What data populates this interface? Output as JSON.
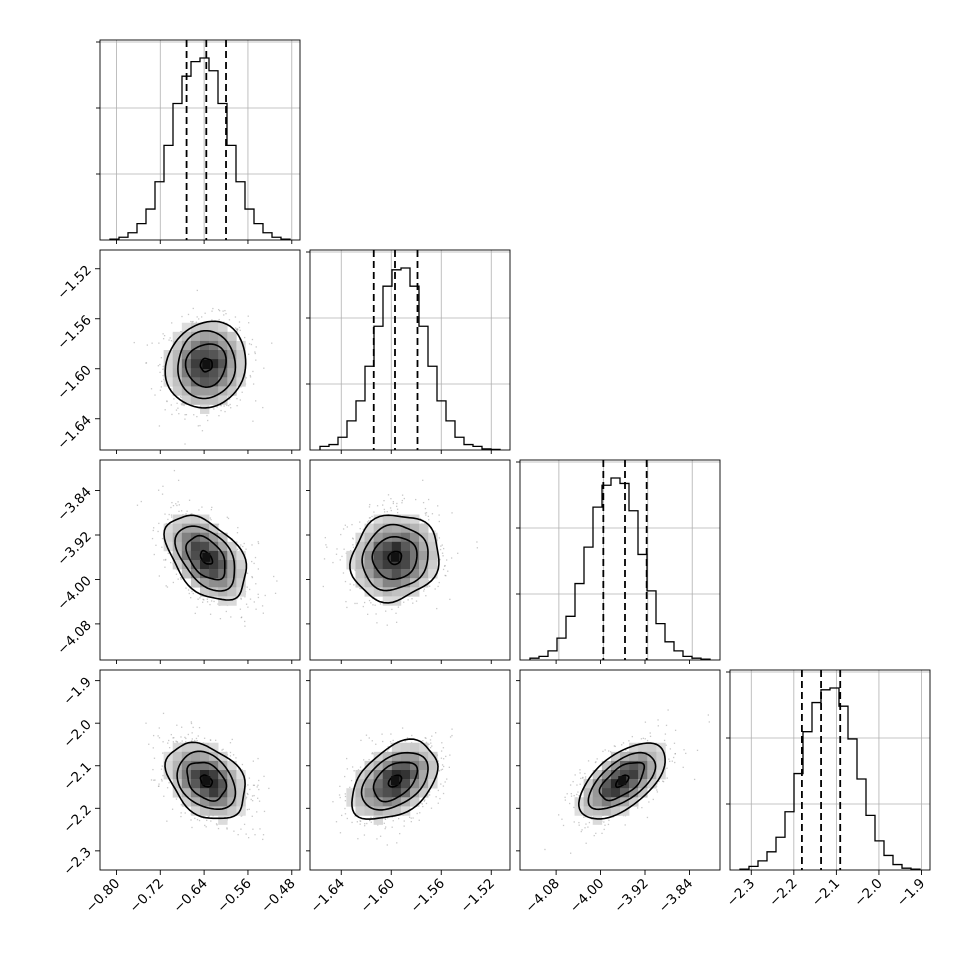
{
  "chart_data": {
    "type": "corner",
    "parameters": [
      {
        "ticks": [
          -0.8,
          -0.72,
          -0.64,
          -0.56,
          -0.48
        ],
        "tick_labels": [
          "−0.80",
          "−0.72",
          "−0.64",
          "−0.56",
          "−0.48"
        ],
        "range": [
          -0.83,
          -0.465
        ],
        "quantiles": [
          -0.672,
          -0.636,
          -0.6
        ],
        "hist_bins": [
          0.005,
          0.015,
          0.04,
          0.09,
          0.17,
          0.32,
          0.52,
          0.75,
          0.9,
          0.98,
          1.0,
          0.93,
          0.75,
          0.52,
          0.32,
          0.17,
          0.09,
          0.04,
          0.015,
          0.005
        ]
      },
      {
        "ticks": [
          -1.64,
          -1.6,
          -1.56,
          -1.52
        ],
        "tick_labels": [
          "−1.64",
          "−1.60",
          "−1.56",
          "−1.52"
        ],
        "range": [
          -1.665,
          -1.505
        ],
        "quantiles": [
          -1.614,
          -1.597,
          -1.579
        ],
        "hist_bins": [
          0.02,
          0.03,
          0.07,
          0.16,
          0.27,
          0.46,
          0.68,
          0.9,
          0.99,
          1.0,
          0.9,
          0.68,
          0.46,
          0.27,
          0.16,
          0.07,
          0.03,
          0.02,
          0.006,
          0.003
        ]
      },
      {
        "ticks": [
          -4.08,
          -4.0,
          -3.92,
          -3.84
        ],
        "tick_labels": [
          "−4.08",
          "−4.00",
          "−3.92",
          "−3.84"
        ],
        "range": [
          -4.15,
          -3.79
        ],
        "quantiles": [
          -4.0,
          -3.961,
          -3.922
        ],
        "hist_bins": [
          0.01,
          0.02,
          0.05,
          0.12,
          0.24,
          0.42,
          0.62,
          0.84,
          0.96,
          1.0,
          0.97,
          0.82,
          0.58,
          0.38,
          0.2,
          0.1,
          0.05,
          0.02,
          0.01,
          0.005
        ]
      },
      {
        "ticks": [
          -2.3,
          -2.2,
          -2.1,
          -2.0,
          -1.9
        ],
        "tick_labels": [
          "−2.3",
          "−2.2",
          "−2.1",
          "−2.0",
          "−1.9"
        ],
        "range": [
          -2.35,
          -1.88
        ],
        "quantiles": [
          -2.181,
          -2.136,
          -2.091
        ],
        "hist_bins": [
          0.005,
          0.02,
          0.05,
          0.1,
          0.18,
          0.32,
          0.53,
          0.76,
          0.92,
          0.99,
          1.0,
          0.9,
          0.72,
          0.5,
          0.3,
          0.16,
          0.08,
          0.03,
          0.01,
          0.005
        ]
      }
    ],
    "joint_ranges": [
      [
        -0.83,
        -0.465
      ],
      [
        -1.665,
        -1.505
      ],
      [
        -4.145,
        -3.785
      ],
      [
        -2.345,
        -1.875
      ]
    ],
    "correlations": [
      [
        1,
        0.05,
        -0.45,
        -0.35
      ],
      [
        0.05,
        1,
        0.1,
        0.4
      ],
      [
        -0.45,
        0.1,
        1,
        0.6
      ],
      [
        -0.35,
        0.4,
        0.6,
        1
      ]
    ],
    "contour_levels": [
      0.5,
      1.0,
      1.5,
      2.0
    ],
    "grid": true
  }
}
